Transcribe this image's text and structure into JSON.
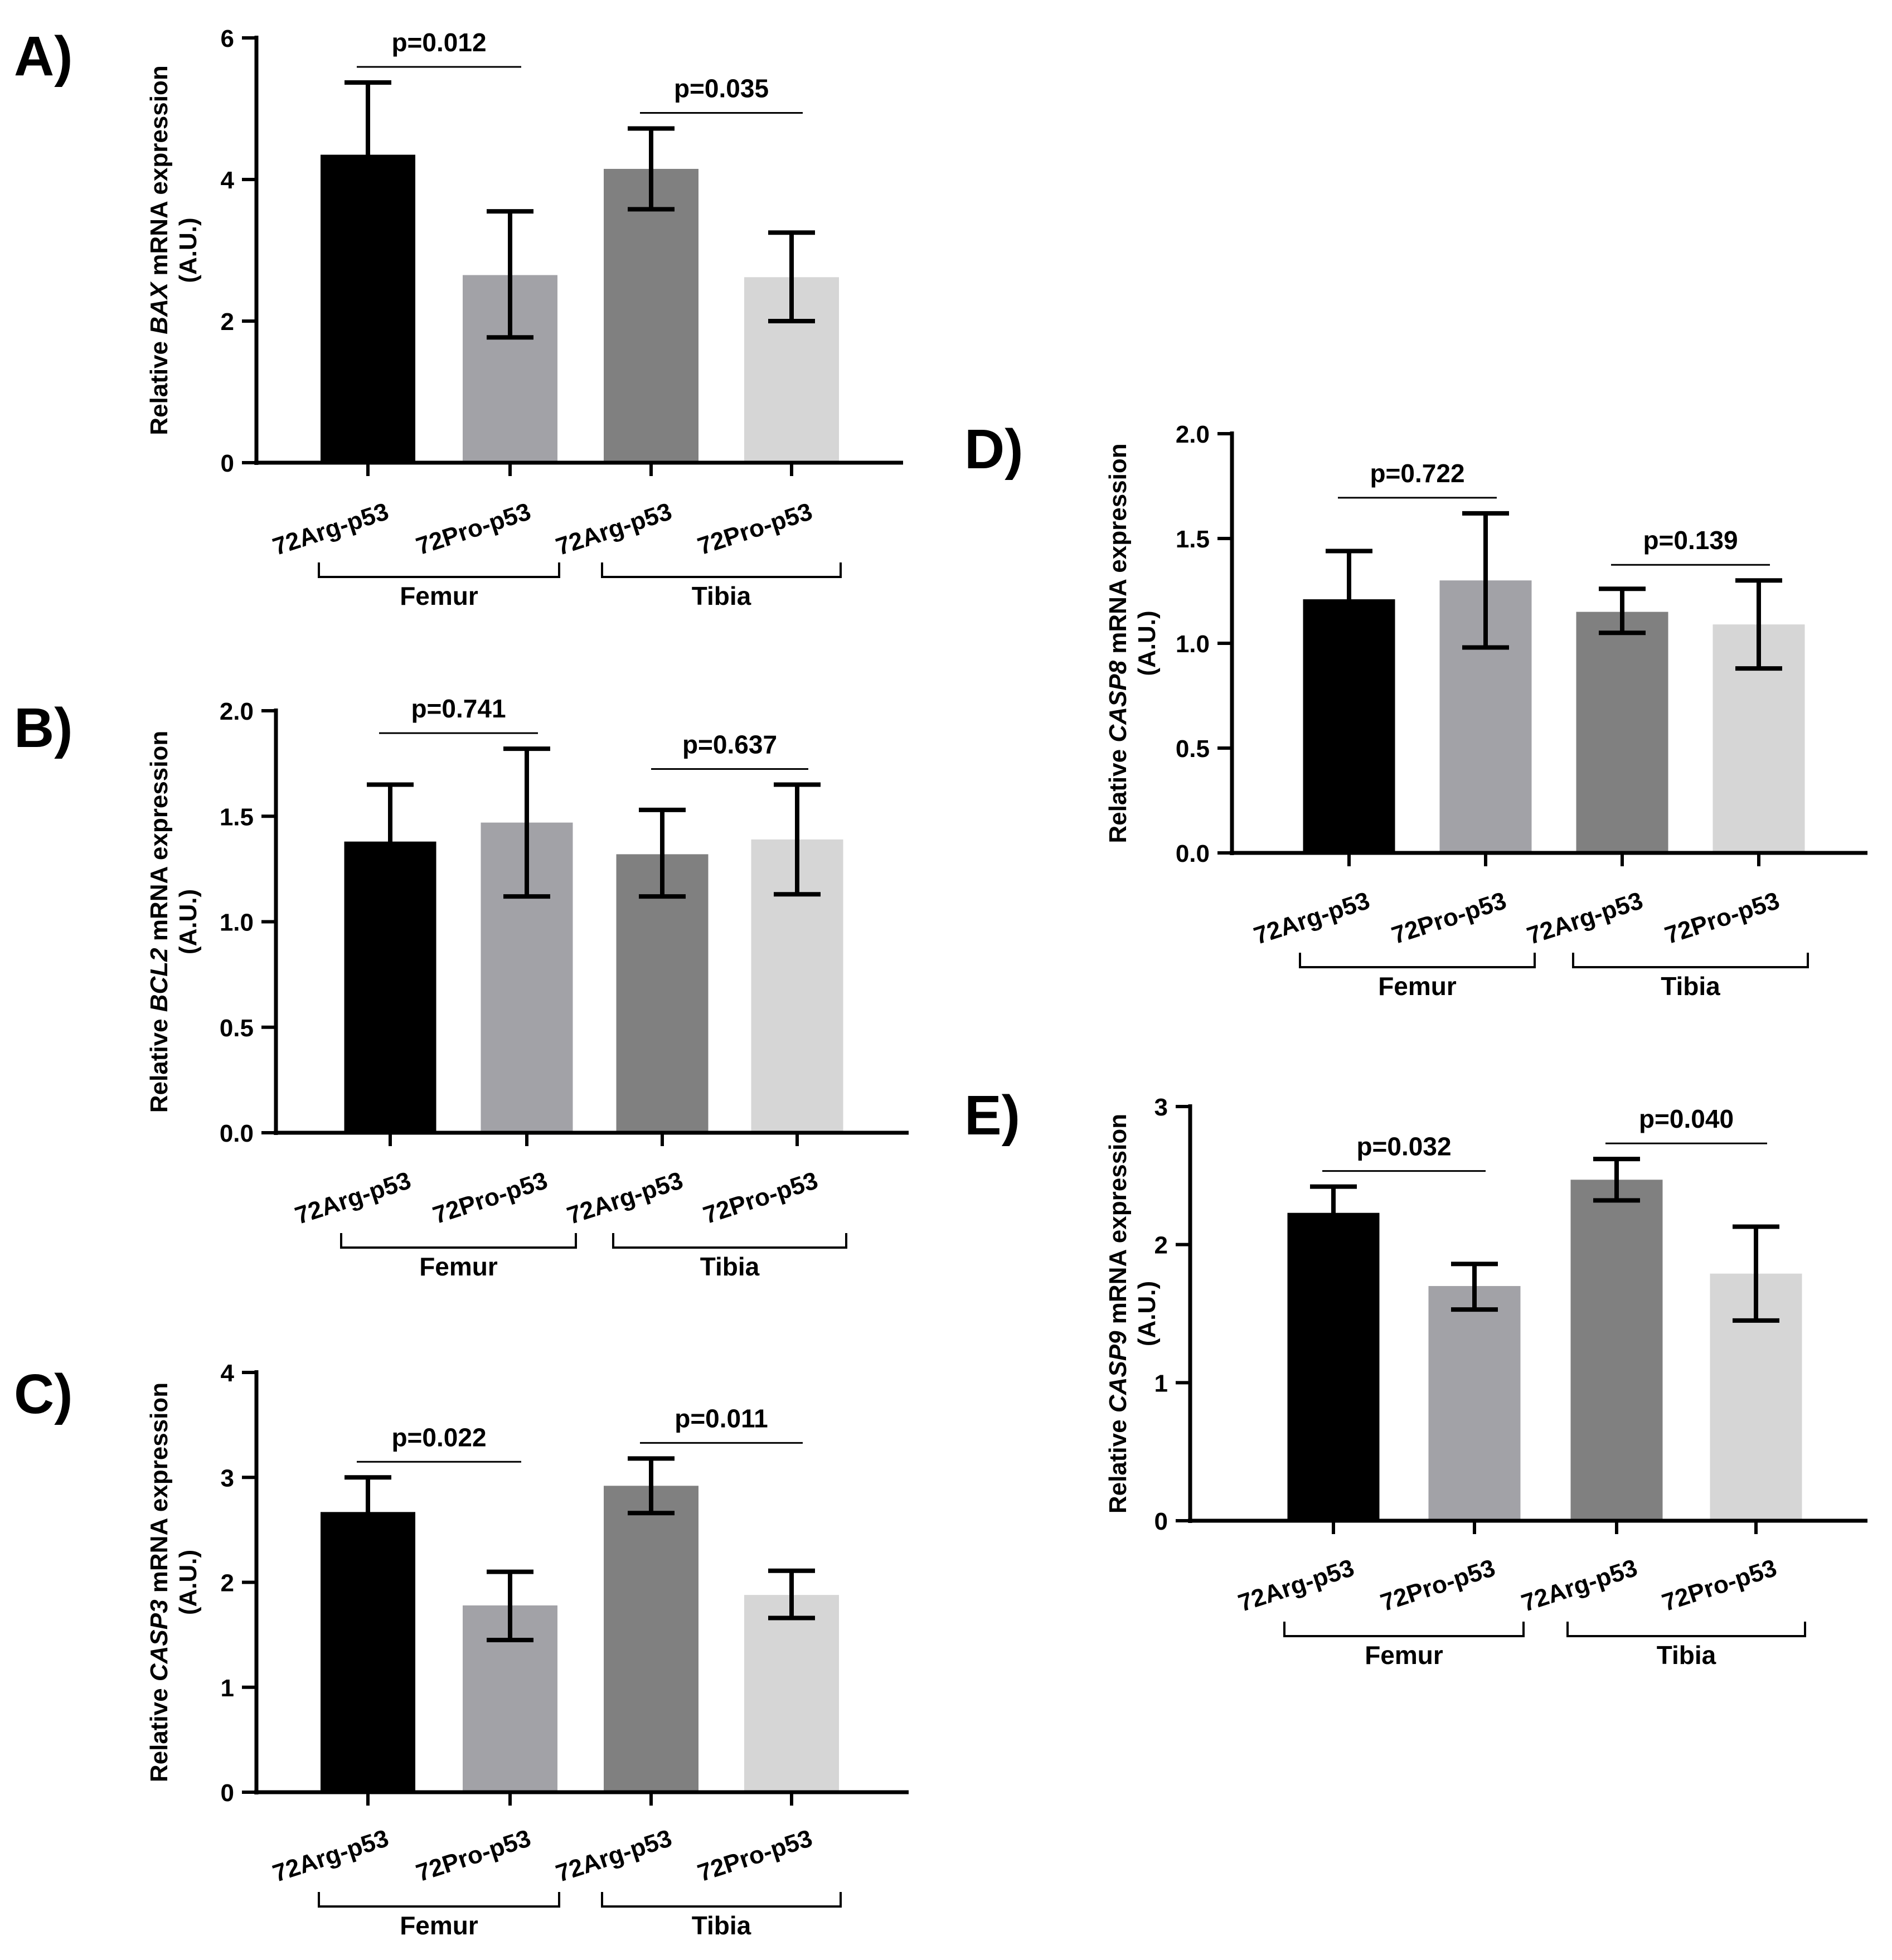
{
  "colors": {
    "axis": "#000000",
    "text": "#000000",
    "bar_fills": [
      "#000000",
      "#a2a2a7",
      "#808080",
      "#d6d6d6"
    ]
  },
  "chart_data": [
    {
      "id": "A",
      "panel_label": "A)",
      "type": "bar",
      "ylabel": {
        "prefix": "Relative ",
        "gene": "BAX",
        "suffix": " mRNA expression",
        "line2": "(A.U.)"
      },
      "ylim": [
        0,
        6
      ],
      "yticks": [
        "0",
        "2",
        "4",
        "6"
      ],
      "categories": [
        "72Arg-p53",
        "72Pro-p53",
        "72Arg-p53",
        "72Pro-p53"
      ],
      "groups": [
        {
          "label": "Femur",
          "members": [
            0,
            1
          ]
        },
        {
          "label": "Tibia",
          "members": [
            2,
            3
          ]
        }
      ],
      "values": [
        4.35,
        2.65,
        4.15,
        2.62
      ],
      "errors": [
        [
          3.33,
          5.37
        ],
        [
          1.77,
          3.55
        ],
        [
          3.58,
          4.72
        ],
        [
          2.0,
          3.25
        ]
      ],
      "comparisons": [
        {
          "label": "p=0.012",
          "between": [
            0,
            1
          ]
        },
        {
          "label": "p=0.035",
          "between": [
            2,
            3
          ]
        }
      ]
    },
    {
      "id": "B",
      "panel_label": "B)",
      "type": "bar",
      "ylabel": {
        "prefix": "Relative ",
        "gene": "BCL2",
        "suffix": " mRNA expression",
        "line2": "(A.U.)"
      },
      "ylim": [
        0,
        2
      ],
      "yticks": [
        "0.0",
        "0.5",
        "1.0",
        "1.5",
        "2.0"
      ],
      "categories": [
        "72Arg-p53",
        "72Pro-p53",
        "72Arg-p53",
        "72Pro-p53"
      ],
      "groups": [
        {
          "label": "Femur",
          "members": [
            0,
            1
          ]
        },
        {
          "label": "Tibia",
          "members": [
            2,
            3
          ]
        }
      ],
      "values": [
        1.38,
        1.47,
        1.32,
        1.39
      ],
      "errors": [
        [
          1.1,
          1.65
        ],
        [
          1.12,
          1.82
        ],
        [
          1.12,
          1.53
        ],
        [
          1.13,
          1.65
        ]
      ],
      "comparisons": [
        {
          "label": "p=0.741",
          "between": [
            0,
            1
          ]
        },
        {
          "label": "p=0.637",
          "between": [
            2,
            3
          ]
        }
      ]
    },
    {
      "id": "C",
      "panel_label": "C)",
      "type": "bar",
      "ylabel": {
        "prefix": "Relative ",
        "gene": "CASP3",
        "suffix": " mRNA expression",
        "line2": "(A.U.)"
      },
      "ylim": [
        0,
        4
      ],
      "yticks": [
        "0",
        "1",
        "2",
        "3",
        "4"
      ],
      "categories": [
        "72Arg-p53",
        "72Pro-p53",
        "72Arg-p53",
        "72Pro-p53"
      ],
      "groups": [
        {
          "label": "Femur",
          "members": [
            0,
            1
          ]
        },
        {
          "label": "Tibia",
          "members": [
            2,
            3
          ]
        }
      ],
      "values": [
        2.67,
        1.78,
        2.92,
        1.88
      ],
      "errors": [
        [
          2.33,
          3.0
        ],
        [
          1.45,
          2.1
        ],
        [
          2.66,
          3.18
        ],
        [
          1.66,
          2.11
        ]
      ],
      "comparisons": [
        {
          "label": "p=0.022",
          "between": [
            0,
            1
          ]
        },
        {
          "label": "p=0.011",
          "between": [
            2,
            3
          ]
        }
      ]
    },
    {
      "id": "D",
      "panel_label": "D)",
      "type": "bar",
      "ylabel": {
        "prefix": "Relative ",
        "gene": "CASP8",
        "suffix": " mRNA expression",
        "line2": "(A.U.)"
      },
      "ylim": [
        0,
        2
      ],
      "yticks": [
        "0.0",
        "0.5",
        "1.0",
        "1.5",
        "2.0"
      ],
      "categories": [
        "72Arg-p53",
        "72Pro-p53",
        "72Arg-p53",
        "72Pro-p53"
      ],
      "groups": [
        {
          "label": "Femur",
          "members": [
            0,
            1
          ]
        },
        {
          "label": "Tibia",
          "members": [
            2,
            3
          ]
        }
      ],
      "values": [
        1.21,
        1.3,
        1.15,
        1.09
      ],
      "errors": [
        [
          0.98,
          1.44
        ],
        [
          0.98,
          1.62
        ],
        [
          1.05,
          1.26
        ],
        [
          0.88,
          1.3
        ]
      ],
      "comparisons": [
        {
          "label": "p=0.722",
          "between": [
            0,
            1
          ]
        },
        {
          "label": "p=0.139",
          "between": [
            2,
            3
          ]
        }
      ]
    },
    {
      "id": "E",
      "panel_label": "E)",
      "type": "bar",
      "ylabel": {
        "prefix": "Relative ",
        "gene": "CASP9",
        "suffix": " mRNA expression",
        "line2": "(A.U.)"
      },
      "ylim": [
        0,
        3
      ],
      "yticks": [
        "0",
        "1",
        "2",
        "3"
      ],
      "categories": [
        "72Arg-p53",
        "72Pro-p53",
        "72Arg-p53",
        "72Pro-p53"
      ],
      "groups": [
        {
          "label": "Femur",
          "members": [
            0,
            1
          ]
        },
        {
          "label": "Tibia",
          "members": [
            2,
            3
          ]
        }
      ],
      "values": [
        2.23,
        1.7,
        2.47,
        1.79
      ],
      "errors": [
        [
          2.03,
          2.42
        ],
        [
          1.53,
          1.86
        ],
        [
          2.32,
          2.62
        ],
        [
          1.45,
          2.13
        ]
      ],
      "comparisons": [
        {
          "label": "p=0.032",
          "between": [
            0,
            1
          ]
        },
        {
          "label": "p=0.040",
          "between": [
            2,
            3
          ]
        }
      ]
    }
  ]
}
